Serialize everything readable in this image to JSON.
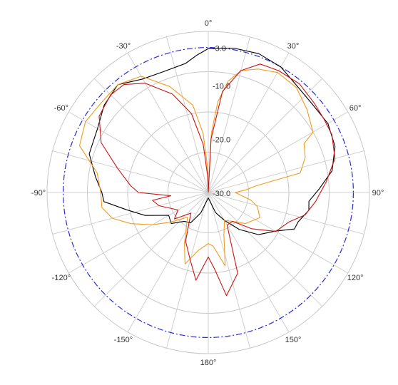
{
  "chart_data": {
    "type": "polar",
    "title": "",
    "angle_unit": "degrees",
    "angle_zero": "top",
    "angle_direction": "clockwise",
    "radial_range_db": [
      -30.0,
      0.0
    ],
    "grid": true,
    "angle_tick_labels": [
      "0°",
      "30°",
      "60°",
      "90°",
      "120°",
      "150°",
      "180°",
      "-150°",
      "-120°",
      "-90°",
      "-60°",
      "-30°"
    ],
    "radial_tick_labels": [
      "-3.0",
      "-10.0",
      "-20.0",
      "-30.0"
    ],
    "reference_circle": {
      "value_db": -3.0,
      "style": "dash-dot",
      "color": "#2a2ad8"
    },
    "series": [
      {
        "color": "#000000",
        "points": [
          [
            0,
            -3.2
          ],
          [
            10,
            -2.7
          ],
          [
            20,
            -2.5
          ],
          [
            30,
            -3.0
          ],
          [
            40,
            -4.2
          ],
          [
            50,
            -4.6
          ],
          [
            60,
            -4.3
          ],
          [
            70,
            -4.9
          ],
          [
            80,
            -6.6
          ],
          [
            88,
            -9.3
          ],
          [
            95,
            -11.2
          ],
          [
            100,
            -11.0
          ],
          [
            108,
            -12.4
          ],
          [
            113,
            -12.6
          ],
          [
            120,
            -15.6
          ],
          [
            130,
            -17.8
          ],
          [
            140,
            -21.0
          ],
          [
            150,
            -24.0
          ],
          [
            160,
            -26.0
          ],
          [
            180,
            -29.0
          ],
          [
            200,
            -26.0
          ],
          [
            210,
            -23.5
          ],
          [
            220,
            -23.0
          ],
          [
            230,
            -21.0
          ],
          [
            240,
            -21.5
          ],
          [
            250,
            -17.5
          ],
          [
            258,
            -14.5
          ],
          [
            265,
            -10.5
          ],
          [
            270,
            -10.2
          ],
          [
            278,
            -8.8
          ],
          [
            288,
            -6.7
          ],
          [
            300,
            -6.2
          ],
          [
            310,
            -4.7
          ],
          [
            320,
            -3.8
          ],
          [
            330,
            -5.6
          ],
          [
            340,
            -6.0
          ],
          [
            350,
            -5.6
          ],
          [
            355,
            -4.4
          ],
          [
            360,
            -3.2
          ]
        ]
      },
      {
        "color": "#f29b1d",
        "points": [
          [
            0,
            -30.0
          ],
          [
            3,
            -19.0
          ],
          [
            6,
            -13.0
          ],
          [
            10,
            -9.0
          ],
          [
            15,
            -6.5
          ],
          [
            22,
            -5.2
          ],
          [
            30,
            -4.2
          ],
          [
            40,
            -4.5
          ],
          [
            50,
            -6.0
          ],
          [
            60,
            -7.5
          ],
          [
            63,
            -10.0
          ],
          [
            70,
            -10.8
          ],
          [
            78,
            -12.5
          ],
          [
            82,
            -21.0
          ],
          [
            86,
            -23.0
          ],
          [
            90,
            -25.0
          ],
          [
            100,
            -22.0
          ],
          [
            106,
            -20.5
          ],
          [
            116,
            -19.3
          ],
          [
            130,
            -21.0
          ],
          [
            140,
            -23.0
          ],
          [
            150,
            -24.0
          ],
          [
            160,
            -21.5
          ],
          [
            167,
            -16.0
          ],
          [
            175,
            -20.0
          ],
          [
            180,
            -20.5
          ],
          [
            190,
            -19.0
          ],
          [
            198,
            -16.0
          ],
          [
            205,
            -19.5
          ],
          [
            215,
            -23.0
          ],
          [
            220,
            -24.0
          ],
          [
            232,
            -21.0
          ],
          [
            240,
            -18.0
          ],
          [
            248,
            -14.5
          ],
          [
            255,
            -11.5
          ],
          [
            262,
            -10.0
          ],
          [
            270,
            -10.0
          ],
          [
            280,
            -9.0
          ],
          [
            290,
            -4.5
          ],
          [
            300,
            -3.6
          ],
          [
            310,
            -4.0
          ],
          [
            320,
            -3.8
          ],
          [
            330,
            -5.0
          ],
          [
            340,
            -9.0
          ],
          [
            350,
            -13.5
          ],
          [
            355,
            -19.0
          ],
          [
            358,
            -25.0
          ],
          [
            360,
            -30.0
          ]
        ]
      },
      {
        "color": "#cc1414",
        "points": [
          [
            0,
            -30.0
          ],
          [
            3,
            -20.0
          ],
          [
            8,
            -11.0
          ],
          [
            15,
            -6.5
          ],
          [
            22,
            -4.2
          ],
          [
            30,
            -3.8
          ],
          [
            40,
            -3.6
          ],
          [
            50,
            -4.2
          ],
          [
            58,
            -4.5
          ],
          [
            65,
            -4.6
          ],
          [
            75,
            -5.6
          ],
          [
            85,
            -8.0
          ],
          [
            95,
            -10.0
          ],
          [
            103,
            -11.5
          ],
          [
            110,
            -14.0
          ],
          [
            120,
            -15.5
          ],
          [
            130,
            -19.5
          ],
          [
            140,
            -23.0
          ],
          [
            150,
            -23.0
          ],
          [
            160,
            -14.0
          ],
          [
            170,
            -10.5
          ],
          [
            175,
            -15.5
          ],
          [
            180,
            -18.0
          ],
          [
            188,
            -13.5
          ],
          [
            195,
            -17.0
          ],
          [
            205,
            -20.0
          ],
          [
            215,
            -24.0
          ],
          [
            220,
            -25.0
          ],
          [
            232,
            -22.0
          ],
          [
            240,
            -23.5
          ],
          [
            255,
            -20.5
          ],
          [
            262,
            -19.5
          ],
          [
            265,
            -23.0
          ],
          [
            270,
            -17.0
          ],
          [
            275,
            -15.5
          ],
          [
            285,
            -12.5
          ],
          [
            295,
            -8.0
          ],
          [
            305,
            -5.2
          ],
          [
            315,
            -4.3
          ],
          [
            322,
            -4.5
          ],
          [
            330,
            -6.5
          ],
          [
            340,
            -10.5
          ],
          [
            348,
            -15.0
          ],
          [
            354,
            -21.0
          ],
          [
            358,
            -27.0
          ],
          [
            360,
            -30.0
          ]
        ]
      }
    ]
  }
}
